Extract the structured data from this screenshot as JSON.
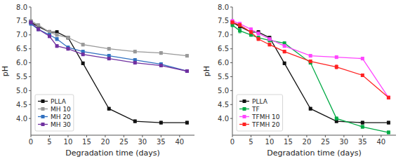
{
  "chart_data": [
    {
      "type": "line",
      "x_label": "Degradation time (days)",
      "y_label": "pH",
      "xlim": [
        0,
        44
      ],
      "ylim": [
        3.4,
        8.0
      ],
      "xticks": [
        0,
        5,
        10,
        15,
        20,
        25,
        30,
        35,
        40
      ],
      "yticks": [
        {
          "value": 4.0,
          "label": "4.0"
        },
        4.5,
        {
          "value": 5.0,
          "label": "5.0"
        },
        5.5,
        {
          "value": 6.0,
          "label": "6.0"
        },
        6.5,
        {
          "value": 7.0,
          "label": "7.0"
        },
        7.5,
        {
          "value": 8.0,
          "label": "8.0"
        }
      ],
      "grid": false,
      "legend": "lower left",
      "marker": "square",
      "x": [
        0,
        2,
        5,
        7,
        10,
        14,
        21,
        28,
        35,
        42
      ],
      "series": [
        {
          "name": "PLLA",
          "color": "#111111",
          "values": [
            7.45,
            7.3,
            7.1,
            7.1,
            6.9,
            5.98,
            4.35,
            3.9,
            3.85,
            3.85
          ],
          "errors": [
            0.05,
            0.05,
            0.05,
            0.05,
            0.05,
            0.05,
            0.05,
            0.05,
            0.05,
            0.05
          ]
        },
        {
          "name": "MH 10",
          "color": "#999999",
          "values": [
            7.5,
            7.35,
            7.1,
            7.0,
            6.9,
            6.65,
            6.5,
            6.4,
            6.35,
            6.25
          ],
          "errors": [
            0.05,
            0.05,
            0.07,
            0.05,
            0.05,
            0.05,
            0.05,
            0.05,
            0.05,
            0.05
          ]
        },
        {
          "name": "MH 20",
          "color": "#3070C0",
          "values": [
            7.4,
            7.2,
            7.0,
            6.85,
            6.55,
            6.4,
            6.25,
            6.1,
            5.95,
            5.7
          ],
          "errors": [
            0.05,
            0.05,
            0.05,
            0.05,
            0.05,
            0.05,
            0.05,
            0.05,
            0.05,
            0.05
          ]
        },
        {
          "name": "MH 30",
          "color": "#7030A0",
          "values": [
            7.45,
            7.2,
            6.95,
            6.6,
            6.5,
            6.3,
            6.15,
            6.0,
            5.9,
            5.7
          ],
          "errors": [
            0.05,
            0.05,
            0.05,
            0.05,
            0.05,
            0.05,
            0.05,
            0.05,
            0.05,
            0.05
          ]
        }
      ]
    },
    {
      "type": "line",
      "x_label": "Degradation time (days)",
      "y_label": "pH",
      "xlim": [
        0,
        44
      ],
      "ylim": [
        3.4,
        8.0
      ],
      "xticks": [
        0,
        5,
        10,
        15,
        20,
        25,
        30,
        35,
        40
      ],
      "yticks": [
        {
          "value": 4.0,
          "label": "4.0"
        },
        4.5,
        {
          "value": 5.0,
          "label": "5.0"
        },
        5.5,
        {
          "value": 6.0,
          "label": "6.0"
        },
        6.5,
        {
          "value": 7.0,
          "label": "7.0"
        },
        7.5,
        {
          "value": 8.0,
          "label": "8.0"
        }
      ],
      "grid": false,
      "legend": "lower left",
      "marker": "square",
      "x": [
        0,
        2,
        5,
        7,
        10,
        14,
        21,
        28,
        35,
        42
      ],
      "series": [
        {
          "name": "PLLA",
          "color": "#111111",
          "values": [
            7.45,
            7.3,
            7.1,
            7.1,
            6.9,
            5.98,
            4.35,
            3.9,
            3.85,
            3.85
          ],
          "errors": [
            0.05,
            0.05,
            0.05,
            0.05,
            0.05,
            0.05,
            0.05,
            0.05,
            0.05,
            0.05
          ]
        },
        {
          "name": "TF",
          "color": "#00AA44",
          "values": [
            7.35,
            7.15,
            7.0,
            6.9,
            6.8,
            6.7,
            6.0,
            4.0,
            3.7,
            3.5
          ],
          "errors": [
            0.05,
            0.08,
            0.05,
            0.05,
            0.05,
            0.05,
            0.05,
            0.05,
            0.05,
            0.05
          ]
        },
        {
          "name": "TFMH 10",
          "color": "#FF44FF",
          "values": [
            7.5,
            7.4,
            7.2,
            7.05,
            6.85,
            6.6,
            6.25,
            6.2,
            6.15,
            4.75
          ],
          "errors": [
            0.05,
            0.05,
            0.05,
            0.05,
            0.05,
            0.05,
            0.05,
            0.05,
            0.05,
            0.05
          ]
        },
        {
          "name": "TFMH 20",
          "color": "#FF2222",
          "values": [
            7.45,
            7.35,
            7.1,
            6.85,
            6.65,
            6.4,
            6.05,
            5.85,
            5.55,
            4.75
          ],
          "errors": [
            0.05,
            0.05,
            0.05,
            0.05,
            0.05,
            0.05,
            0.05,
            0.07,
            0.05,
            0.05
          ]
        }
      ]
    }
  ]
}
